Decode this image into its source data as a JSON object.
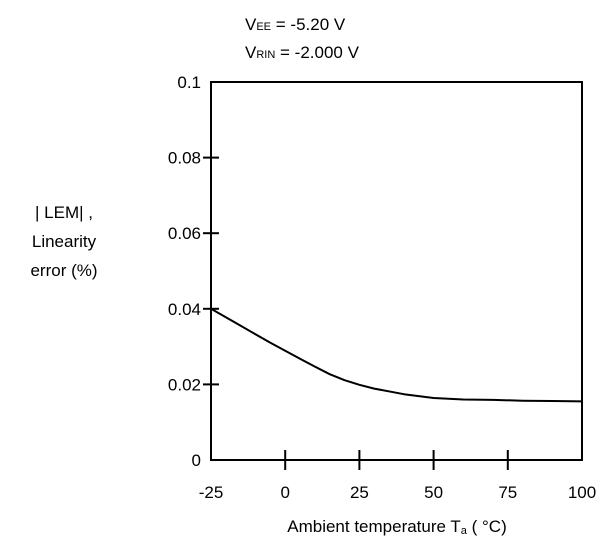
{
  "annotations": {
    "vee": {
      "base": "V",
      "sub": "EE",
      "rest": " = -5.20 V"
    },
    "vrin": {
      "base": "V",
      "sub": "RIN",
      "rest": " = -2.000 V"
    }
  },
  "chart_data": {
    "type": "line",
    "title": "",
    "ylabel_lines": [
      "| LEM| ,",
      "Linearity",
      "error (%)"
    ],
    "xlabel": {
      "text": "Ambient temperature T",
      "sub": "a",
      "unit": " ( °C)"
    },
    "xlim": [
      -25,
      100
    ],
    "ylim": [
      0,
      0.1
    ],
    "x_ticks": [
      -25,
      0,
      25,
      50,
      75,
      100
    ],
    "x_tick_labels": [
      "-25",
      "0",
      "25",
      "50",
      "75",
      "100"
    ],
    "y_ticks": [
      0,
      0.02,
      0.04,
      0.06,
      0.08,
      0.1
    ],
    "y_tick_labels": [
      "0",
      "0.02",
      "0.04",
      "0.06",
      "0.08",
      "0.1"
    ],
    "grid": false,
    "legend": false,
    "series": [
      {
        "x": [
          -25,
          -15,
          -5,
          5,
          10,
          15,
          20,
          25,
          30,
          40,
          50,
          60,
          70,
          80,
          90,
          100
        ],
        "y": [
          0.04,
          0.0355,
          0.031,
          0.0268,
          0.0247,
          0.0227,
          0.0211,
          0.0199,
          0.0189,
          0.0174,
          0.0164,
          0.016,
          0.0159,
          0.0157,
          0.0156,
          0.0155
        ]
      }
    ]
  }
}
